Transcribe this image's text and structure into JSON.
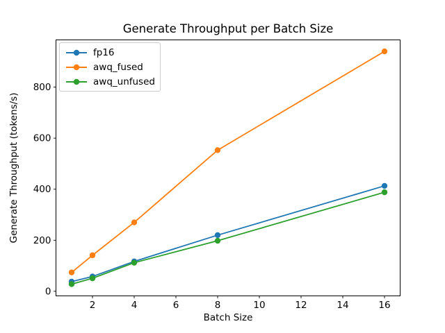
{
  "chart_data": {
    "type": "line",
    "title": "Generate Throughput per Batch Size",
    "xlabel": "Batch Size",
    "ylabel": "Generate Throughput (tokens/s)",
    "x": [
      1,
      2,
      4,
      8,
      16
    ],
    "series": [
      {
        "name": "fp16",
        "color": "#1f77b4",
        "values": [
          38,
          58,
          117,
          220,
          413
        ]
      },
      {
        "name": "awq_fused",
        "color": "#ff7f0e",
        "values": [
          74,
          141,
          270,
          553,
          940
        ]
      },
      {
        "name": "awq_unfused",
        "color": "#2ca02c",
        "values": [
          28,
          51,
          112,
          198,
          388
        ]
      }
    ],
    "xticks": [
      2,
      4,
      6,
      8,
      10,
      12,
      14,
      16
    ],
    "yticks": [
      0,
      200,
      400,
      600,
      800
    ],
    "xlim": [
      0.25,
      16.75
    ],
    "ylim": [
      -18,
      985
    ],
    "grid": false,
    "marker": "o",
    "legend_position": "upper left",
    "spine_color": "#000000",
    "background": "#ffffff"
  }
}
